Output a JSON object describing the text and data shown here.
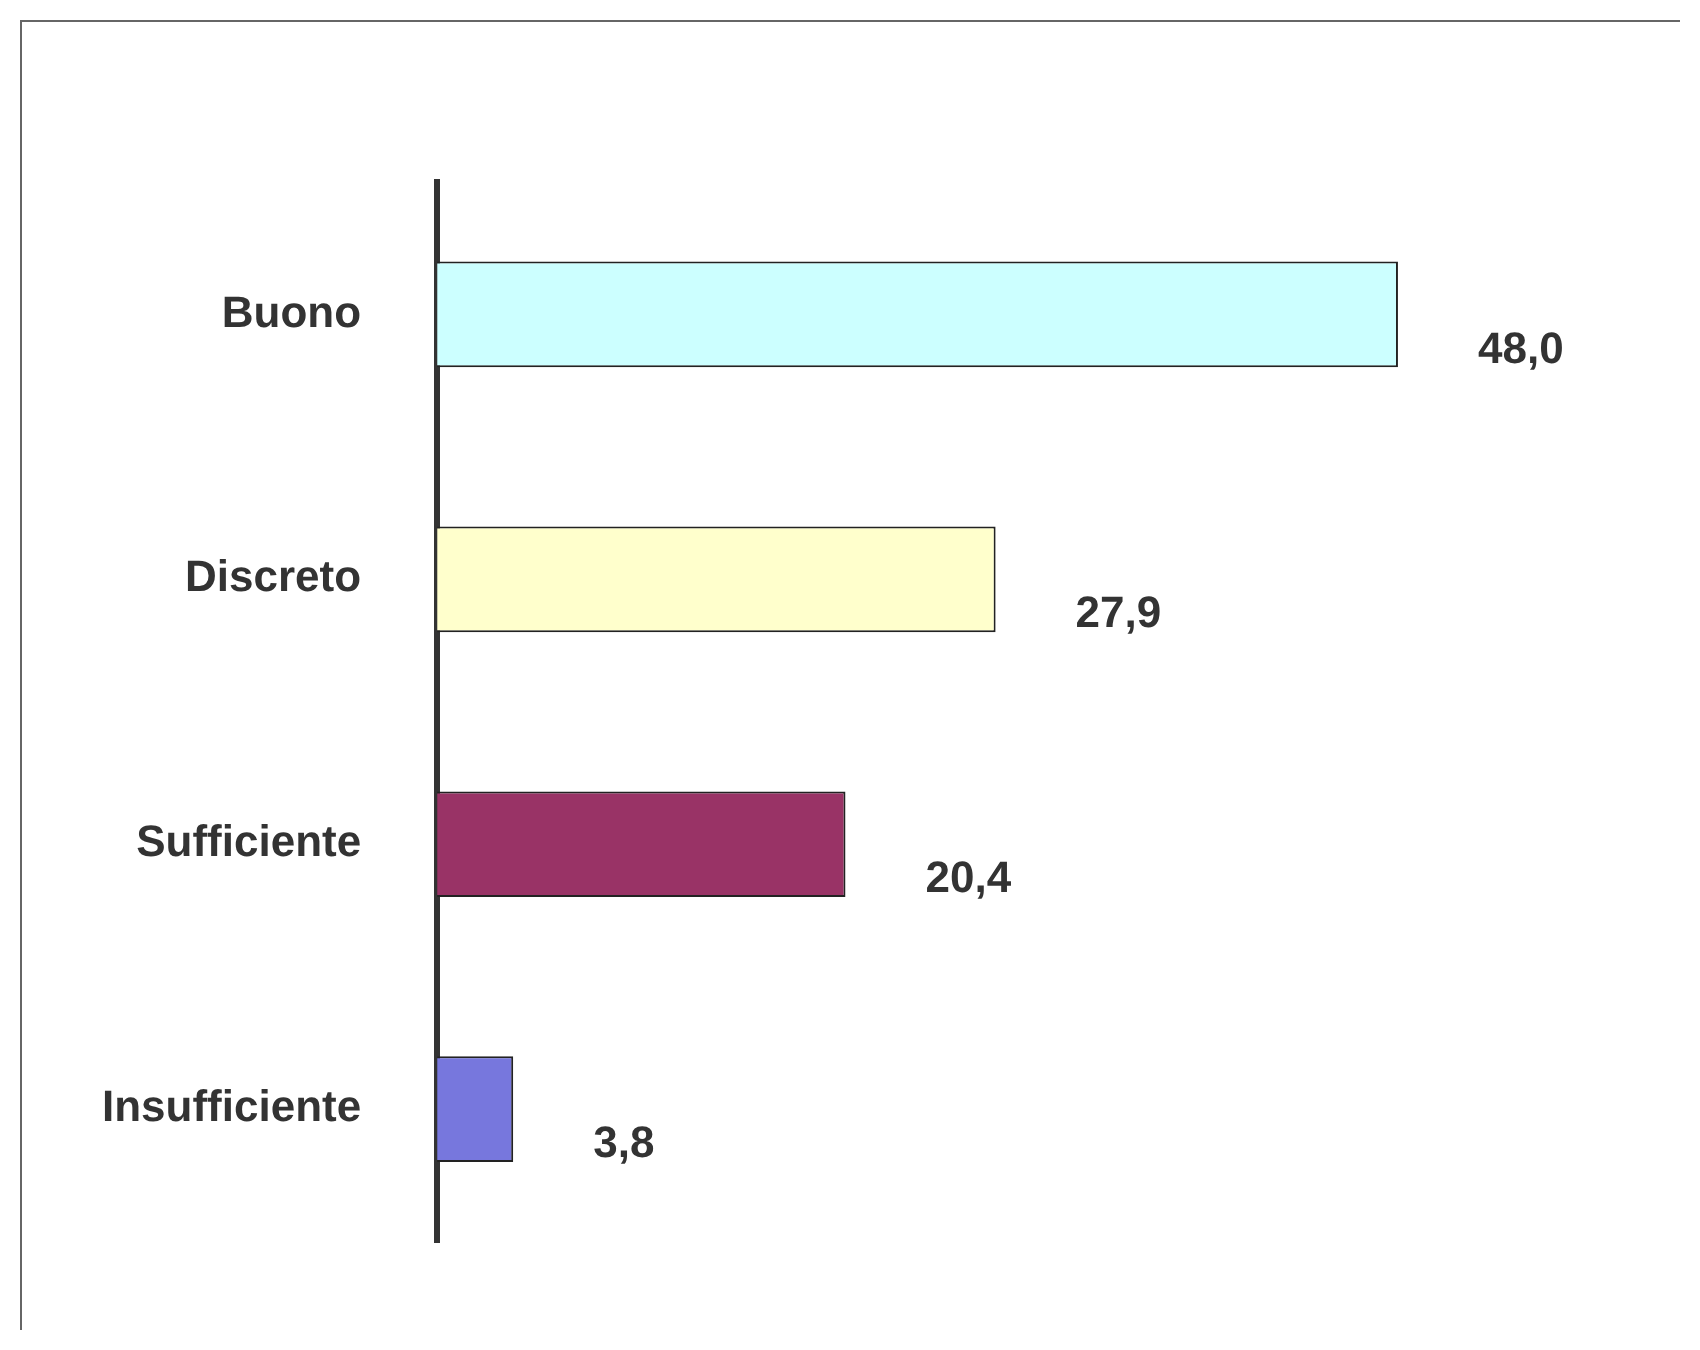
{
  "chart_data": {
    "type": "bar",
    "orientation": "horizontal",
    "categories": [
      "Buono",
      "Discreto",
      "Sufficiente",
      "Insufficiente"
    ],
    "values": [
      48.0,
      27.9,
      20.4,
      3.8
    ],
    "colors": [
      "#ccffff",
      "#ffffcc",
      "#993366",
      "#7777dd"
    ],
    "value_labels": [
      "48,0",
      "27,9",
      "20,4",
      "3,8"
    ],
    "legend": false
  }
}
